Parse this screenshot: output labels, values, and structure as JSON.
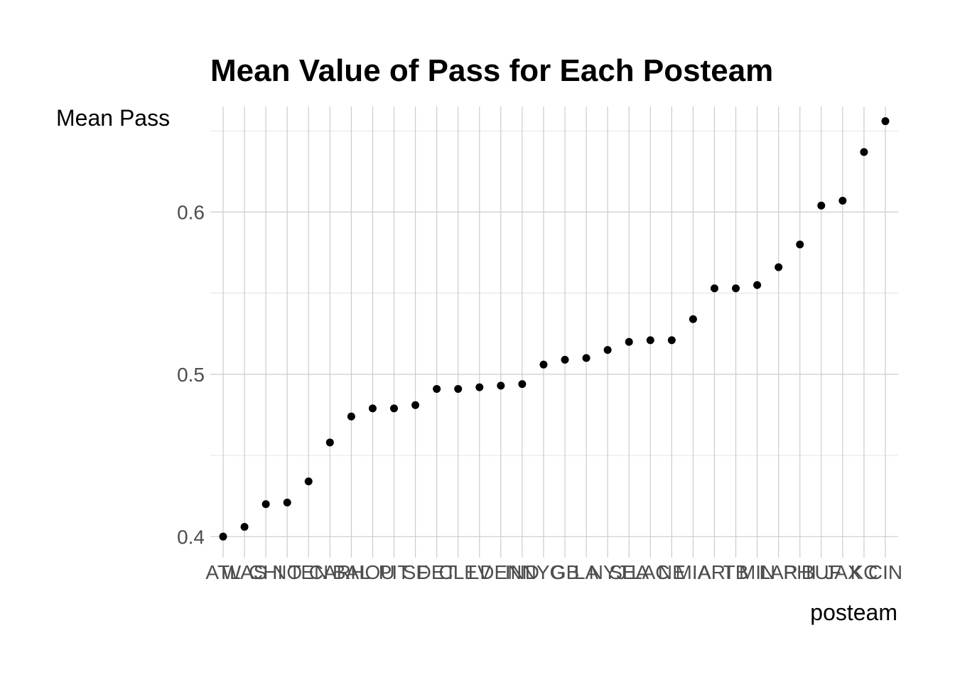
{
  "chart_data": {
    "type": "scatter",
    "title": "Mean Value of Pass for Each Posteam",
    "xlabel": "posteam",
    "ylabel": "Mean Pass",
    "categories": [
      "ATL",
      "WAS",
      "CHI",
      "NO",
      "TEN",
      "CAR",
      "BAL",
      "HOU",
      "PIT",
      "SF",
      "DET",
      "CLE",
      "LV",
      "DEN",
      "IND",
      "NYG",
      "GB",
      "LA",
      "NYJ",
      "SEA",
      "LAC",
      "NE",
      "MIA",
      "ARI",
      "TB",
      "MIN",
      "LAR",
      "PHI",
      "BUF",
      "JAX",
      "KC",
      "CIN"
    ],
    "values": [
      0.4,
      0.406,
      0.42,
      0.421,
      0.434,
      0.458,
      0.474,
      0.479,
      0.479,
      0.481,
      0.491,
      0.491,
      0.492,
      0.493,
      0.494,
      0.506,
      0.509,
      0.51,
      0.515,
      0.52,
      0.521,
      0.521,
      0.534,
      0.553,
      0.553,
      0.555,
      0.566,
      0.58,
      0.604,
      0.607,
      0.637,
      0.656
    ],
    "ylim": [
      0.387,
      0.665
    ],
    "yticks": [
      0.4,
      0.5,
      0.6
    ],
    "ytick_labels": [
      "0.4",
      "0.5",
      "0.6"
    ],
    "grid": true,
    "legend": "none"
  }
}
